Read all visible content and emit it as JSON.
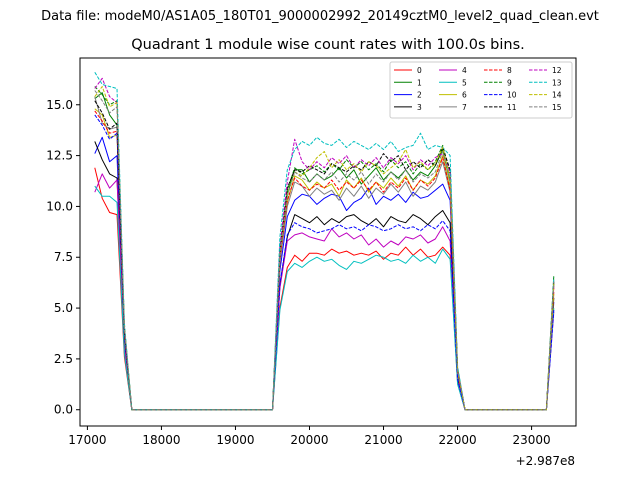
{
  "suptitle": "Data file: modeM0/AS1A05_180T01_9000002992_20149cztM0_level2_quad_clean.evt",
  "chart_data": {
    "type": "line",
    "title": "Quadrant 1 module wise count rates with 100.0s bins.",
    "xlabel": "",
    "ylabel": "",
    "x_offset_label": "+2.987e8",
    "xlim": [
      16900,
      23600
    ],
    "ylim": [
      -0.8,
      17.3
    ],
    "x_ticks": [
      17000,
      18000,
      19000,
      20000,
      21000,
      22000,
      23000
    ],
    "y_ticks": [
      0.0,
      2.5,
      5.0,
      7.5,
      10.0,
      12.5,
      15.0
    ],
    "y_tick_labels": [
      "0.0",
      "2.5",
      "5.0",
      "7.5",
      "10.0",
      "12.5",
      "15.0"
    ],
    "grid": false,
    "legend_position": "top-right",
    "legend_columns": 4,
    "segments": {
      "a": [
        17100,
        17200,
        17300,
        17400
      ],
      "b": [
        19700,
        19800,
        19900,
        20000,
        20100,
        20200,
        20300,
        20400,
        20500,
        20600,
        20700,
        20800,
        20900,
        21000,
        21100,
        21200,
        21300,
        21400,
        21500,
        21600,
        21700,
        21800,
        21900
      ],
      "c": [
        23300
      ]
    },
    "series": [
      {
        "name": "0",
        "color": "#ff0000",
        "dash": "solid",
        "a": [
          11.9,
          10.4,
          9.7,
          9.6
        ],
        "b": [
          7.0,
          7.6,
          7.3,
          7.7,
          7.7,
          7.6,
          7.9,
          7.7,
          7.8,
          7.6,
          7.7,
          7.6,
          7.8,
          7.4,
          7.7,
          7.6,
          8.0,
          7.6,
          7.9,
          7.5,
          7.6,
          8.0,
          7.6
        ],
        "c": [
          5.8
        ]
      },
      {
        "name": "1",
        "color": "#008000",
        "dash": "solid",
        "a": [
          15.3,
          15.6,
          14.5,
          14.0
        ],
        "b": [
          10.6,
          11.8,
          11.8,
          11.2,
          11.6,
          11.3,
          11.5,
          11.9,
          11.4,
          11.8,
          11.1,
          11.5,
          11.9,
          11.3,
          11.7,
          11.4,
          11.8,
          11.3,
          11.7,
          11.5,
          12.0,
          12.8,
          11.2
        ],
        "c": [
          6.2
        ]
      },
      {
        "name": "2",
        "color": "#0000ff",
        "dash": "solid",
        "a": [
          12.6,
          13.4,
          12.2,
          12.5
        ],
        "b": [
          9.5,
          10.3,
          10.6,
          10.5,
          10.1,
          10.4,
          10.6,
          10.5,
          9.8,
          10.2,
          10.4,
          10.9,
          10.1,
          10.5,
          10.3,
          10.6,
          10.2,
          10.7,
          10.4,
          10.5,
          10.8,
          11.1,
          10.3
        ],
        "c": [
          5.3
        ]
      },
      {
        "name": "3",
        "color": "#000000",
        "dash": "solid",
        "a": [
          13.2,
          12.3,
          11.6,
          11.4
        ],
        "b": [
          8.5,
          9.6,
          9.4,
          9.2,
          9.5,
          9.1,
          9.4,
          9.2,
          9.5,
          9.6,
          9.3,
          9.1,
          9.4,
          9.0,
          9.5,
          9.3,
          9.2,
          9.6,
          9.4,
          9.1,
          9.5,
          9.8,
          9.2
        ],
        "c": [
          5.5
        ]
      },
      {
        "name": "4",
        "color": "#bf00bf",
        "dash": "solid",
        "a": [
          10.7,
          11.6,
          10.9,
          11.3
        ],
        "b": [
          8.3,
          8.6,
          8.7,
          8.5,
          8.4,
          8.3,
          8.9,
          8.5,
          8.7,
          8.4,
          8.6,
          8.1,
          8.4,
          8.0,
          8.3,
          8.1,
          8.5,
          8.4,
          8.6,
          8.2,
          8.4,
          9.0,
          8.3
        ],
        "c": [
          4.8
        ]
      },
      {
        "name": "5",
        "color": "#00bfbf",
        "dash": "solid",
        "a": [
          11.0,
          10.5,
          10.5,
          10.2
        ],
        "b": [
          6.8,
          7.2,
          7.0,
          7.3,
          7.5,
          7.3,
          7.4,
          7.1,
          6.9,
          7.3,
          7.2,
          7.4,
          7.6,
          7.5,
          7.3,
          7.4,
          7.2,
          7.6,
          7.3,
          7.5,
          7.2,
          7.9,
          7.4
        ],
        "c": [
          5.0
        ]
      },
      {
        "name": "6",
        "color": "#bfbf00",
        "dash": "solid",
        "a": [
          14.8,
          14.5,
          13.4,
          13.5
        ],
        "b": [
          10.2,
          11.5,
          11.3,
          10.8,
          11.2,
          10.9,
          11.1,
          10.5,
          11.3,
          10.9,
          11.4,
          10.7,
          11.2,
          10.9,
          11.4,
          11.0,
          11.5,
          10.8,
          11.3,
          11.1,
          11.5,
          12.5,
          10.9
        ],
        "c": [
          5.7
        ]
      },
      {
        "name": "7",
        "color": "#808080",
        "dash": "solid",
        "a": [
          15.4,
          14.1,
          13.8,
          13.9
        ],
        "b": [
          10.0,
          11.2,
          11.0,
          10.5,
          10.9,
          10.6,
          10.8,
          10.3,
          10.9,
          10.5,
          11.0,
          10.4,
          10.9,
          10.6,
          11.1,
          10.7,
          11.2,
          10.5,
          11.0,
          10.8,
          11.2,
          12.2,
          10.7
        ],
        "c": [
          6.4
        ]
      },
      {
        "name": "8",
        "color": "#ff0000",
        "dash": "dashed",
        "a": [
          14.7,
          14.2,
          13.6,
          13.7
        ],
        "b": [
          10.3,
          11.4,
          11.0,
          10.8,
          11.1,
          10.9,
          11.3,
          10.8,
          11.2,
          10.9,
          11.3,
          10.8,
          11.2,
          10.7,
          11.2,
          10.9,
          11.4,
          10.8,
          11.3,
          11.0,
          11.4,
          12.4,
          10.8
        ],
        "c": [
          6.0
        ]
      },
      {
        "name": "9",
        "color": "#008000",
        "dash": "dashed",
        "a": [
          15.9,
          15.5,
          15.0,
          15.2
        ],
        "b": [
          10.8,
          11.9,
          11.6,
          11.8,
          12.0,
          11.7,
          12.1,
          11.8,
          12.3,
          11.9,
          12.2,
          11.8,
          12.1,
          11.7,
          12.3,
          11.9,
          12.2,
          11.6,
          12.1,
          11.8,
          12.2,
          13.0,
          11.6
        ],
        "c": [
          6.6
        ]
      },
      {
        "name": "10",
        "color": "#0000ff",
        "dash": "dashed",
        "a": [
          14.5,
          14.0,
          13.3,
          13.6
        ],
        "b": [
          8.6,
          9.2,
          9.0,
          8.9,
          8.7,
          8.8,
          8.9,
          9.1,
          8.9,
          9.0,
          8.8,
          9.1,
          9.0,
          8.8,
          8.9,
          9.1,
          8.9,
          9.0,
          8.8,
          9.1,
          8.9,
          9.3,
          8.8
        ],
        "c": [
          4.9
        ]
      },
      {
        "name": "11",
        "color": "#000000",
        "dash": "dashed",
        "a": [
          15.2,
          14.6,
          13.8,
          14.1
        ],
        "b": [
          10.9,
          11.8,
          11.7,
          12.0,
          11.8,
          11.6,
          12.1,
          11.9,
          11.7,
          12.0,
          11.8,
          12.2,
          12.0,
          12.6,
          12.2,
          12.5,
          11.8,
          12.2,
          11.9,
          12.3,
          12.0,
          12.9,
          11.8
        ],
        "c": [
          6.3
        ]
      },
      {
        "name": "12",
        "color": "#bf00bf",
        "dash": "dashed",
        "a": [
          15.8,
          16.3,
          15.4,
          15.1
        ],
        "b": [
          11.2,
          13.3,
          12.2,
          11.8,
          12.2,
          11.9,
          12.4,
          12.1,
          12.5,
          11.9,
          12.3,
          12.0,
          12.4,
          11.9,
          12.4,
          12.1,
          12.5,
          11.8,
          12.3,
          12.0,
          12.4,
          12.6,
          11.7
        ],
        "c": [
          6.1
        ]
      },
      {
        "name": "13",
        "color": "#00bfbf",
        "dash": "dashed",
        "a": [
          16.6,
          16.0,
          15.9,
          15.8
        ],
        "b": [
          11.8,
          12.8,
          13.2,
          13.0,
          13.4,
          13.1,
          13.0,
          13.3,
          12.9,
          13.2,
          13.0,
          12.8,
          13.1,
          12.8,
          13.2,
          12.7,
          12.9,
          13.0,
          13.6,
          12.8,
          13.0,
          12.9,
          12.5
        ],
        "c": [
          6.5
        ]
      },
      {
        "name": "14",
        "color": "#bfbf00",
        "dash": "dashed",
        "a": [
          15.4,
          15.9,
          14.9,
          15.1
        ],
        "b": [
          10.6,
          11.7,
          11.5,
          11.9,
          12.4,
          12.7,
          11.9,
          12.3,
          11.8,
          12.1,
          11.7,
          12.2,
          12.0,
          11.6,
          11.9,
          12.2,
          12.8,
          11.9,
          12.2,
          11.8,
          12.1,
          12.9,
          11.4
        ],
        "c": [
          6.2
        ]
      },
      {
        "name": "15",
        "color": "#808080",
        "dash": "dashed",
        "a": [
          15.7,
          15.2,
          14.6,
          14.9
        ],
        "b": [
          10.5,
          11.7,
          11.4,
          11.2,
          11.6,
          11.3,
          11.7,
          11.2,
          11.6,
          11.3,
          11.7,
          11.1,
          11.6,
          11.2,
          11.7,
          11.3,
          11.8,
          11.2,
          11.6,
          11.4,
          11.7,
          12.7,
          11.2
        ],
        "c": [
          6.3
        ]
      }
    ]
  }
}
